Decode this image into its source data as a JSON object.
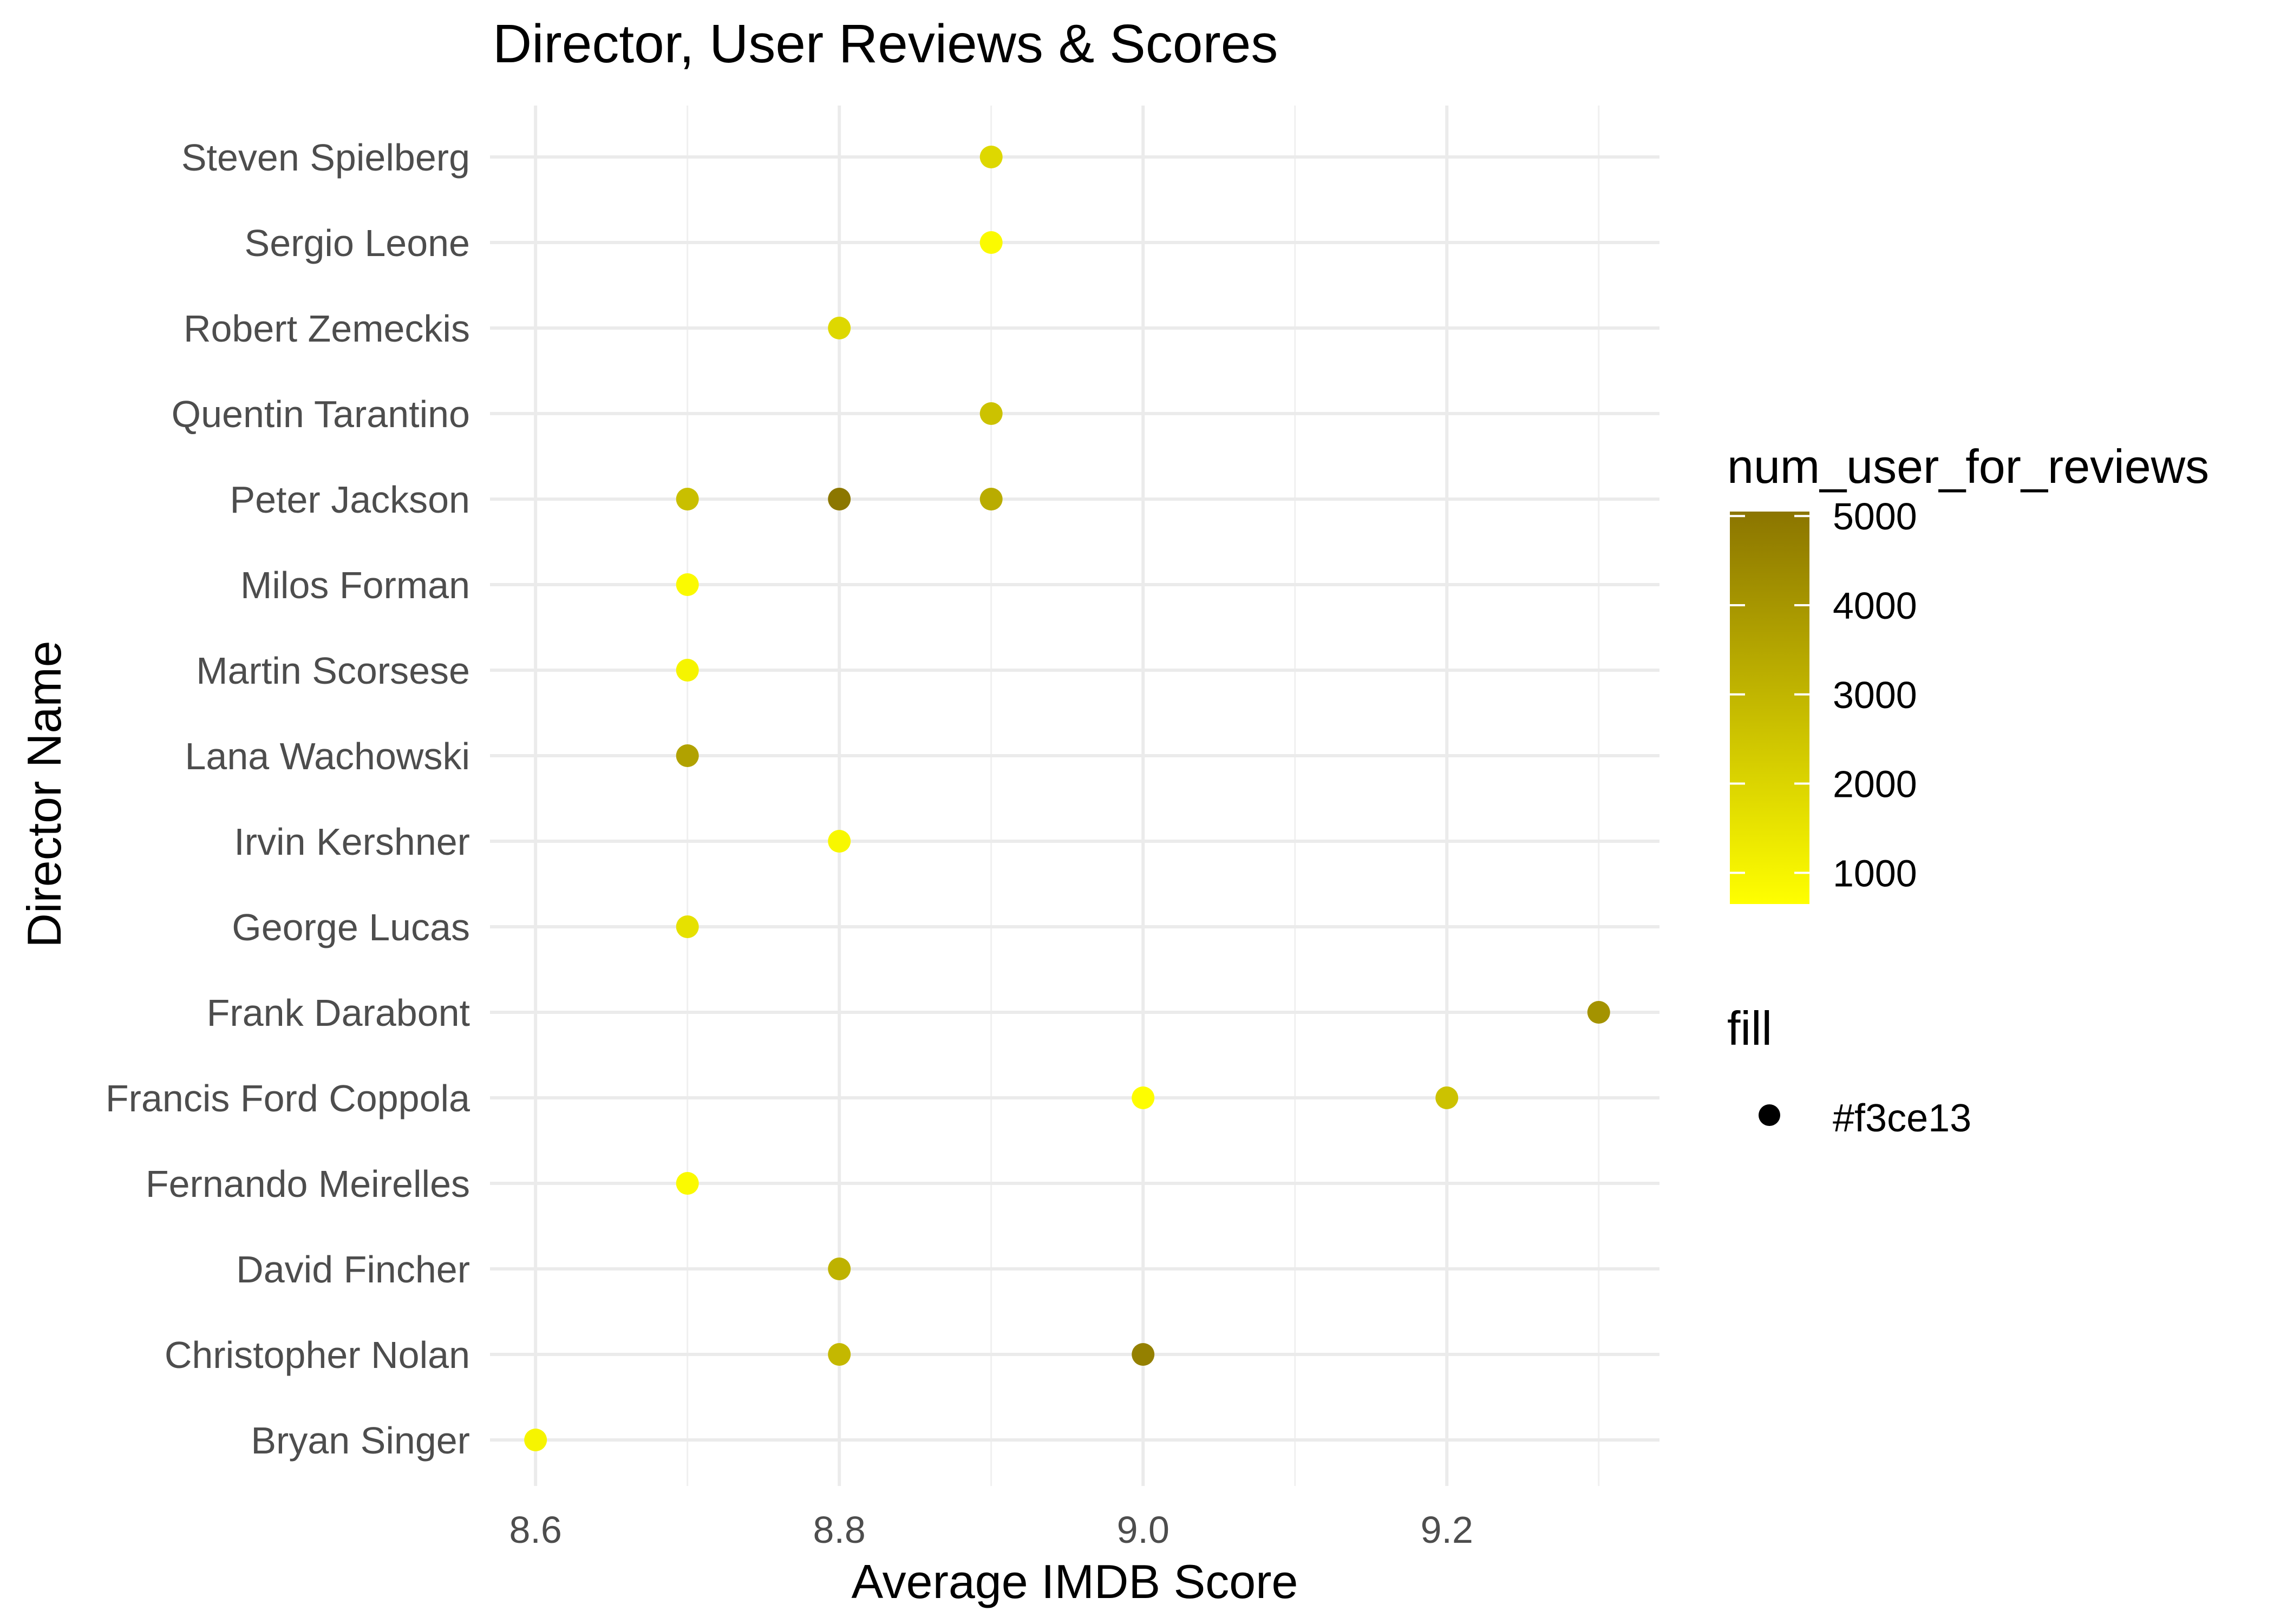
{
  "chart_data": {
    "type": "scatter",
    "title": "Director, User Reviews & Scores",
    "xlabel": "Average IMDB Score",
    "ylabel": "Director Name",
    "xlim": [
      8.57,
      9.34
    ],
    "x_ticks": [
      "8.6",
      "8.8",
      "9.0",
      "9.2"
    ],
    "x_tick_values": [
      8.6,
      8.8,
      9.0,
      9.2
    ],
    "categories": [
      "Bryan Singer",
      "Christopher Nolan",
      "David Fincher",
      "Fernando Meirelles",
      "Francis Ford Coppola",
      "Frank Darabont",
      "George Lucas",
      "Irvin Kershner",
      "Lana Wachowski",
      "Martin Scorsese",
      "Milos Forman",
      "Peter Jackson",
      "Quentin Tarantino",
      "Robert Zemeckis",
      "Sergio Leone",
      "Steven Spielberg"
    ],
    "points": [
      {
        "director": "Bryan Singer",
        "x": 8.6,
        "reviews": 1000
      },
      {
        "director": "Christopher Nolan",
        "x": 8.8,
        "reviews": 2900
      },
      {
        "director": "Christopher Nolan",
        "x": 9.0,
        "reviews": 4700
      },
      {
        "director": "David Fincher",
        "x": 8.8,
        "reviews": 3100
      },
      {
        "director": "Fernando Meirelles",
        "x": 8.7,
        "reviews": 800
      },
      {
        "director": "Francis Ford Coppola",
        "x": 9.0,
        "reviews": 700
      },
      {
        "director": "Francis Ford Coppola",
        "x": 9.2,
        "reviews": 2600
      },
      {
        "director": "Frank Darabont",
        "x": 9.3,
        "reviews": 4100
      },
      {
        "director": "George Lucas",
        "x": 8.7,
        "reviews": 1600
      },
      {
        "director": "Irvin Kershner",
        "x": 8.8,
        "reviews": 900
      },
      {
        "director": "Lana Wachowski",
        "x": 8.7,
        "reviews": 3600
      },
      {
        "director": "Martin Scorsese",
        "x": 8.7,
        "reviews": 1000
      },
      {
        "director": "Milos Forman",
        "x": 8.7,
        "reviews": 800
      },
      {
        "director": "Peter Jackson",
        "x": 8.7,
        "reviews": 2700
      },
      {
        "director": "Peter Jackson",
        "x": 8.8,
        "reviews": 5000
      },
      {
        "director": "Peter Jackson",
        "x": 8.9,
        "reviews": 3300
      },
      {
        "director": "Quentin Tarantino",
        "x": 8.9,
        "reviews": 2600
      },
      {
        "director": "Robert Zemeckis",
        "x": 8.8,
        "reviews": 1900
      },
      {
        "director": "Sergio Leone",
        "x": 8.9,
        "reviews": 800
      },
      {
        "director": "Steven Spielberg",
        "x": 8.9,
        "reviews": 1900
      }
    ],
    "color_legend": {
      "title": "num_user_for_reviews",
      "min": 650,
      "max": 5050,
      "ticks": [
        1000,
        2000,
        3000,
        4000,
        5000
      ],
      "tick_labels": [
        "1000",
        "2000",
        "3000",
        "4000",
        "5000"
      ],
      "low_color": "#ffff00",
      "high_color": "#8b7500"
    },
    "fill_legend": {
      "title": "fill",
      "label": "#f3ce13",
      "key_color": "#000000"
    },
    "grid": true,
    "legend_position": "right"
  }
}
